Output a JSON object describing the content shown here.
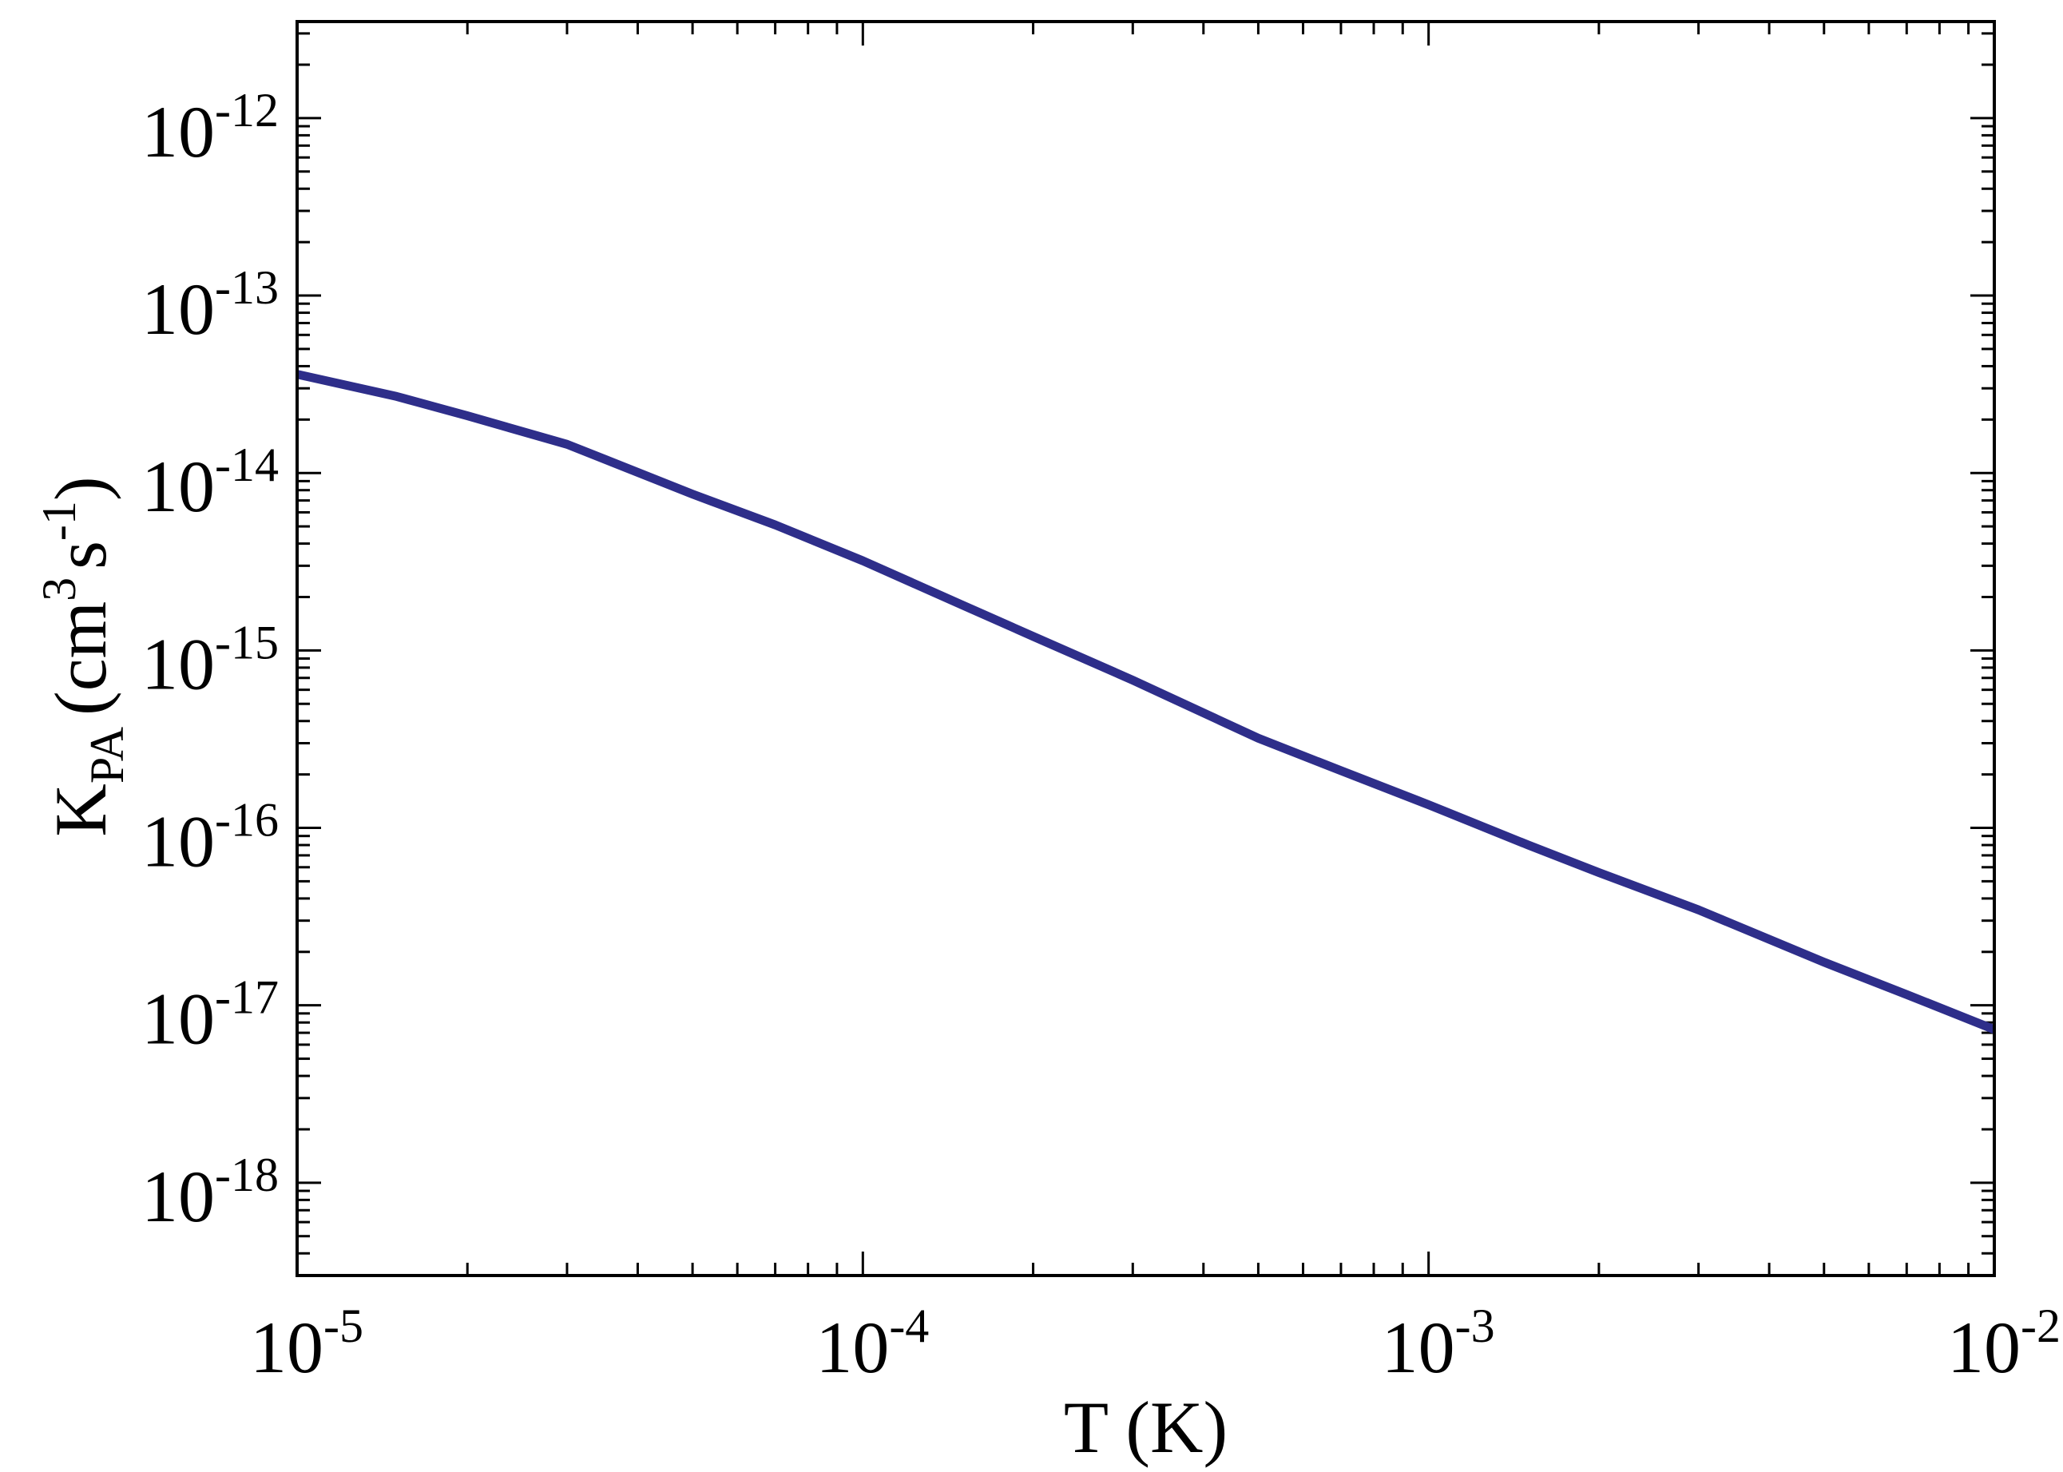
{
  "chart_data": {
    "type": "line",
    "title": "",
    "xlabel": "T (K)",
    "ylabel": {
      "base": "K",
      "subscript": "PA",
      "open": "(cm",
      "sup1": "3",
      "mid": "s",
      "sup2": "-1",
      "close": ")"
    },
    "xscale": "log",
    "yscale": "log",
    "xlim": [
      1e-05,
      0.01
    ],
    "ylim": [
      3e-19,
      3.5e-12
    ],
    "grid": false,
    "x_ticks": [
      {
        "base": "10",
        "exp": "-5",
        "value": 1e-05
      },
      {
        "base": "10",
        "exp": "-4",
        "value": 0.0001
      },
      {
        "base": "10",
        "exp": "-3",
        "value": 0.001
      },
      {
        "base": "10",
        "exp": "-2",
        "value": 0.01
      }
    ],
    "y_ticks": [
      {
        "base": "10",
        "exp": "-18",
        "value": 1e-18
      },
      {
        "base": "10",
        "exp": "-17",
        "value": 1e-17
      },
      {
        "base": "10",
        "exp": "-16",
        "value": 1e-16
      },
      {
        "base": "10",
        "exp": "-15",
        "value": 1e-15
      },
      {
        "base": "10",
        "exp": "-14",
        "value": 1e-14
      },
      {
        "base": "10",
        "exp": "-13",
        "value": 1e-13
      },
      {
        "base": "10",
        "exp": "-12",
        "value": 1e-12
      }
    ],
    "series": [
      {
        "color": "#2e2e8a",
        "x": [
          1e-05,
          1.5e-05,
          2e-05,
          3e-05,
          5e-05,
          7e-05,
          0.0001,
          0.00015,
          0.0002,
          0.0003,
          0.0005,
          0.0007,
          0.001,
          0.0015,
          0.002,
          0.003,
          0.005,
          0.007,
          0.01
        ],
        "y": [
          3.6e-14,
          2.7e-14,
          2.1e-14,
          1.45e-14,
          7.6e-15,
          5.1e-15,
          3.2e-15,
          1.8e-15,
          1.2e-15,
          6.8e-16,
          3.2e-16,
          2.1e-16,
          1.35e-16,
          8e-17,
          5.6e-17,
          3.45e-17,
          1.75e-17,
          1.15e-17,
          7.3e-18
        ]
      }
    ]
  }
}
